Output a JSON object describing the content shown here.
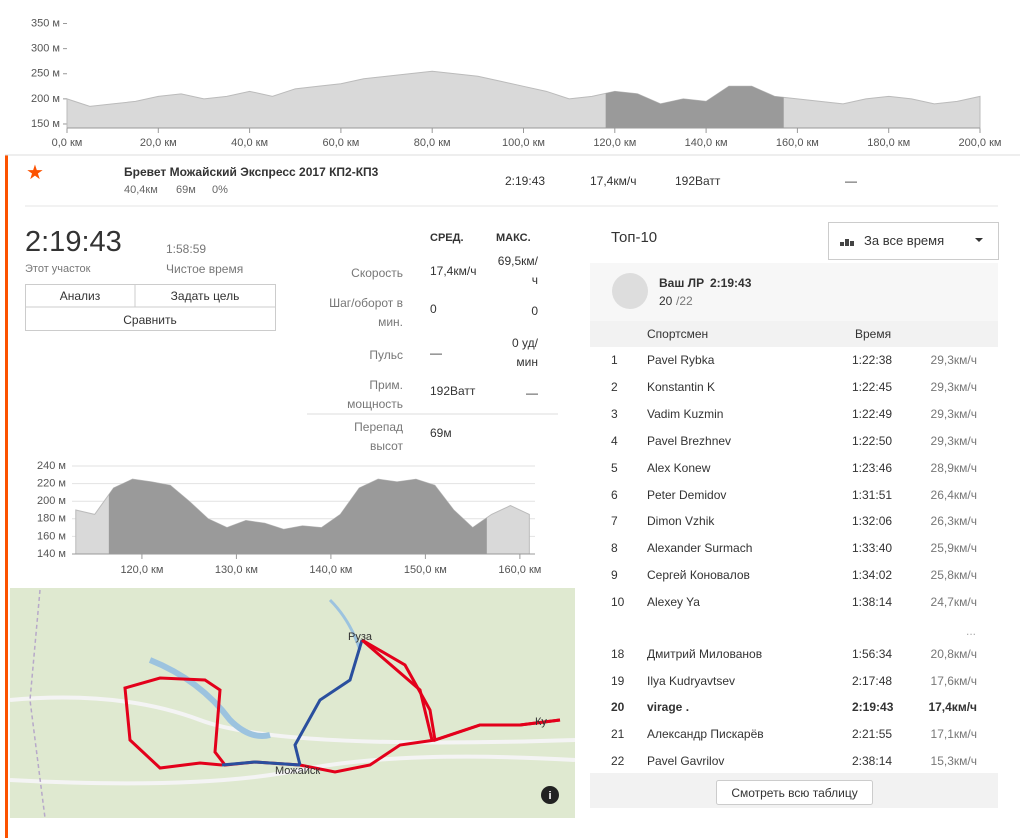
{
  "top_profile": {
    "x": [
      0,
      5,
      10,
      15,
      20,
      25,
      30,
      35,
      40,
      45,
      50,
      55,
      60,
      65,
      70,
      75,
      80,
      85,
      90,
      95,
      100,
      105,
      110,
      115,
      120,
      125,
      130,
      135,
      140,
      145,
      150,
      155,
      160,
      165,
      170,
      175,
      180,
      185,
      190,
      195,
      200
    ],
    "elevation": [
      200,
      185,
      190,
      195,
      205,
      210,
      200,
      205,
      215,
      205,
      220,
      225,
      230,
      240,
      245,
      250,
      255,
      250,
      245,
      235,
      225,
      215,
      200,
      205,
      215,
      210,
      190,
      200,
      195,
      225,
      225,
      205,
      200,
      195,
      190,
      200,
      205,
      200,
      190,
      195,
      205
    ],
    "xlim": [
      0,
      200
    ],
    "ylim": [
      142,
      357
    ],
    "highlight": [
      118,
      157
    ],
    "grid": false,
    "xticks": [
      {
        "value": 0,
        "label": "0,0 км"
      },
      {
        "value": 20,
        "label": "20,0 км"
      },
      {
        "value": 40,
        "label": "40,0 км"
      },
      {
        "value": 60,
        "label": "60,0 км"
      },
      {
        "value": 80,
        "label": "80,0 км"
      },
      {
        "value": 100,
        "label": "100,0 км"
      },
      {
        "value": 120,
        "label": "120,0 км"
      },
      {
        "value": 140,
        "label": "140,0 км"
      },
      {
        "value": 160,
        "label": "160,0 км"
      },
      {
        "value": 180,
        "label": "180,0 км"
      },
      {
        "value": 200,
        "label": "200,0 км"
      }
    ],
    "yticks": [
      {
        "value": 150,
        "label": "150 м"
      },
      {
        "value": 200,
        "label": "200 м"
      },
      {
        "value": 250,
        "label": "250 м"
      },
      {
        "value": 300,
        "label": "300 м"
      },
      {
        "value": 350,
        "label": "350 м"
      }
    ]
  },
  "segment": {
    "title": "Бревет Можайский Экспресс 2017 КП2-КП3",
    "distance": "40,4км",
    "elevation": "69м",
    "grade": "0%",
    "time": "2:19:43",
    "speed": "17,4км/ч",
    "power": "192Ватт",
    "hr": "—"
  },
  "stats": {
    "time": "2:19:43",
    "time_label": "Этот участок",
    "moving_time": "1:58:59",
    "moving_label": "Чистое время",
    "buttons": [
      "Анализ",
      "Задать цель",
      "Сравнить"
    ],
    "headers": [
      "СРЕД.",
      "МАКС."
    ],
    "rows": [
      [
        "Скорость",
        "17,4км/ч",
        "69,5км/ч"
      ],
      [
        "Шаг/оборот в мин.",
        "0",
        "0"
      ],
      [
        "Пульс",
        "—",
        "0 уд/мин"
      ],
      [
        "Прим. мощность",
        "192Ватт",
        "—"
      ],
      [
        "Перепад высот",
        "69м",
        null
      ]
    ]
  },
  "zoom_profile": {
    "x": [
      113,
      115,
      117,
      119,
      121,
      123,
      125,
      127,
      129,
      131,
      133,
      135,
      137,
      139,
      141,
      143,
      145,
      147,
      149,
      151,
      153,
      155,
      157,
      159,
      161
    ],
    "elevation": [
      190,
      185,
      215,
      225,
      222,
      218,
      200,
      180,
      170,
      178,
      175,
      168,
      172,
      170,
      185,
      215,
      225,
      222,
      225,
      218,
      190,
      170,
      185,
      195,
      185
    ],
    "xlim": [
      112.6,
      161.6
    ],
    "ylim": [
      140,
      240
    ],
    "highlight": [
      116.5,
      156.5
    ],
    "grid": true,
    "xticks": [
      {
        "value": 120,
        "label": "120,0 км"
      },
      {
        "value": 130,
        "label": "130,0 км"
      },
      {
        "value": 140,
        "label": "140,0 км"
      },
      {
        "value": 150,
        "label": "150,0 км"
      },
      {
        "value": 160,
        "label": "160,0 км"
      }
    ],
    "yticks": [
      {
        "value": 140,
        "label": "140 м"
      },
      {
        "value": 160,
        "label": "160 м"
      },
      {
        "value": 180,
        "label": "180 м"
      },
      {
        "value": 200,
        "label": "200 м"
      },
      {
        "value": 220,
        "label": "220 м"
      },
      {
        "value": 240,
        "label": "240 м"
      }
    ]
  },
  "map": {
    "labels": [
      "Руза",
      "Можайск",
      "Ку"
    ]
  },
  "leaderboard": {
    "title": "Топ-10",
    "filter": "За все время",
    "pr_label": "Ваш ЛР",
    "pr_time": "2:19:43",
    "pr_rank": "20",
    "pr_total": "/22",
    "headers": [
      "Спортсмен",
      "Время"
    ],
    "rows": [
      [
        "1",
        "Pavel Rybka",
        "1:22:38",
        "29,3км/ч"
      ],
      [
        "2",
        "Konstantin K",
        "1:22:45",
        "29,3км/ч"
      ],
      [
        "3",
        "Vadim Kuzmin",
        "1:22:49",
        "29,3км/ч"
      ],
      [
        "4",
        "Pavel Brezhnev",
        "1:22:50",
        "29,3км/ч"
      ],
      [
        "5",
        "Alex Konew",
        "1:23:46",
        "28,9км/ч"
      ],
      [
        "6",
        "Peter Demidov",
        "1:31:51",
        "26,4км/ч"
      ],
      [
        "7",
        "Dimon Vzhik",
        "1:32:06",
        "26,3км/ч"
      ],
      [
        "8",
        "Alexander Surmach",
        "1:33:40",
        "25,9км/ч"
      ],
      [
        "9",
        "Сергей Коновалов",
        "1:34:02",
        "25,8км/ч"
      ],
      [
        "10",
        "Alexey Ya",
        "1:38:14",
        "24,7км/ч"
      ]
    ],
    "ellipsis": "...",
    "rows2": [
      [
        "18",
        "Дмитрий Милованов",
        "1:56:34",
        "20,8км/ч"
      ],
      [
        "19",
        "Ilya Kudryavtsev",
        "2:17:48",
        "17,6км/ч"
      ],
      [
        "20",
        "virage .",
        "2:19:43",
        "17,4км/ч"
      ],
      [
        "21",
        "Александр Пискарёв",
        "2:21:55",
        "17,1км/ч"
      ],
      [
        "22",
        "Pavel Gavrilov",
        "2:38:14",
        "15,3км/ч"
      ]
    ],
    "bold_row": 2,
    "button": "Смотреть всю таблицу"
  }
}
